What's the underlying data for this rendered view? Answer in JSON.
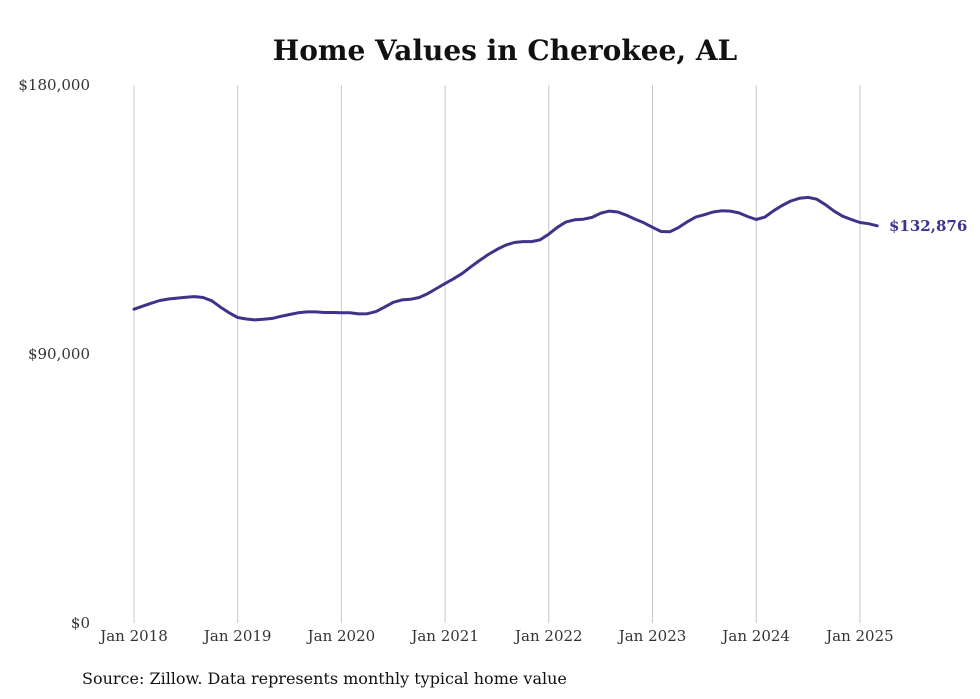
{
  "chart_data": {
    "type": "line",
    "title": "Home Values in Cherokee, AL",
    "xlabel": "",
    "ylabel": "",
    "source": "Source: Zillow. Data represents monthly typical home value",
    "ylim": [
      0,
      180000
    ],
    "y_ticks": [
      {
        "value": 0,
        "label": "$0"
      },
      {
        "value": 90000,
        "label": "$90,000"
      },
      {
        "value": 180000,
        "label": "$180,000"
      }
    ],
    "x_ticks": [
      {
        "date": "2018-01",
        "label": "Jan 2018"
      },
      {
        "date": "2019-01",
        "label": "Jan 2019"
      },
      {
        "date": "2020-01",
        "label": "Jan 2020"
      },
      {
        "date": "2021-01",
        "label": "Jan 2021"
      },
      {
        "date": "2022-01",
        "label": "Jan 2022"
      },
      {
        "date": "2023-01",
        "label": "Jan 2023"
      },
      {
        "date": "2024-01",
        "label": "Jan 2024"
      },
      {
        "date": "2025-01",
        "label": "Jan 2025"
      }
    ],
    "x_range": [
      "2018-01",
      "2025-03"
    ],
    "grid": "vertical",
    "line_color": "#3d3489",
    "end_label": "$132,876",
    "series": [
      {
        "x": [
          "2018-01",
          "2018-02",
          "2018-03",
          "2018-04",
          "2018-05",
          "2018-06",
          "2018-07",
          "2018-08",
          "2018-09",
          "2018-10",
          "2018-11",
          "2018-12",
          "2019-01",
          "2019-02",
          "2019-03",
          "2019-04",
          "2019-05",
          "2019-06",
          "2019-07",
          "2019-08",
          "2019-09",
          "2019-10",
          "2019-11",
          "2019-12",
          "2020-01",
          "2020-02",
          "2020-03",
          "2020-04",
          "2020-05",
          "2020-06",
          "2020-07",
          "2020-08",
          "2020-09",
          "2020-10",
          "2020-11",
          "2020-12",
          "2021-01",
          "2021-02",
          "2021-03",
          "2021-04",
          "2021-05",
          "2021-06",
          "2021-07",
          "2021-08",
          "2021-09",
          "2021-10",
          "2021-11",
          "2021-12",
          "2022-01",
          "2022-02",
          "2022-03",
          "2022-04",
          "2022-05",
          "2022-06",
          "2022-07",
          "2022-08",
          "2022-09",
          "2022-10",
          "2022-11",
          "2022-12",
          "2023-01",
          "2023-02",
          "2023-03",
          "2023-04",
          "2023-05",
          "2023-06",
          "2023-07",
          "2023-08",
          "2023-09",
          "2023-10",
          "2023-11",
          "2023-12",
          "2024-01",
          "2024-02",
          "2024-03",
          "2024-04",
          "2024-05",
          "2024-06",
          "2024-07",
          "2024-08",
          "2024-09",
          "2024-10",
          "2024-11",
          "2024-12",
          "2025-01",
          "2025-02",
          "2025-03"
        ],
        "values": [
          105000,
          106000,
          107000,
          107900,
          108400,
          108700,
          109000,
          109200,
          108900,
          107800,
          105700,
          103800,
          102200,
          101700,
          101400,
          101600,
          101900,
          102600,
          103200,
          103800,
          104100,
          104100,
          103900,
          103900,
          103800,
          103800,
          103400,
          103500,
          104200,
          105700,
          107300,
          108100,
          108300,
          108900,
          110200,
          111900,
          113600,
          115200,
          117000,
          119200,
          121300,
          123300,
          125000,
          126400,
          127300,
          127600,
          127600,
          128200,
          130100,
          132400,
          134200,
          134900,
          135100,
          135700,
          137100,
          137800,
          137500,
          136400,
          135100,
          133900,
          132400,
          131000,
          130900,
          132300,
          134200,
          135800,
          136600,
          137500,
          137900,
          137800,
          137200,
          136000,
          135000,
          135800,
          137900,
          139700,
          141200,
          142100,
          142400,
          141800,
          140000,
          137800,
          136100,
          135000,
          134000,
          133600,
          132876
        ]
      }
    ]
  }
}
